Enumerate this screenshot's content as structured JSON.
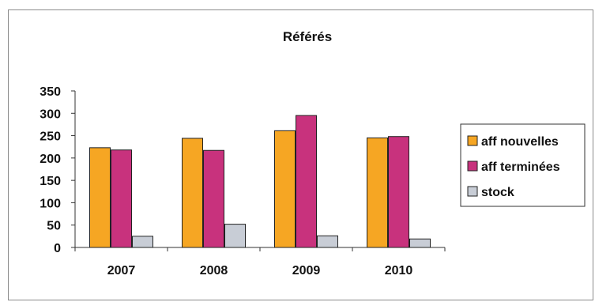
{
  "chart_data": {
    "type": "bar",
    "title": "Référés",
    "categories": [
      "2007",
      "2008",
      "2009",
      "2010"
    ],
    "series": [
      {
        "name": "aff nouvelles",
        "values": [
          223,
          244,
          261,
          245
        ],
        "color": "#F6A623"
      },
      {
        "name": "aff terminées",
        "values": [
          218,
          217,
          295,
          248
        ],
        "color": "#C8327D"
      },
      {
        "name": "stock",
        "values": [
          25,
          52,
          26,
          19
        ],
        "color": "#C8CDD6"
      }
    ],
    "yticks": [
      "0",
      "50",
      "100",
      "150",
      "200",
      "250",
      "300",
      "350"
    ],
    "ylim": [
      0,
      350
    ],
    "grid": false,
    "legend_position": "right"
  }
}
